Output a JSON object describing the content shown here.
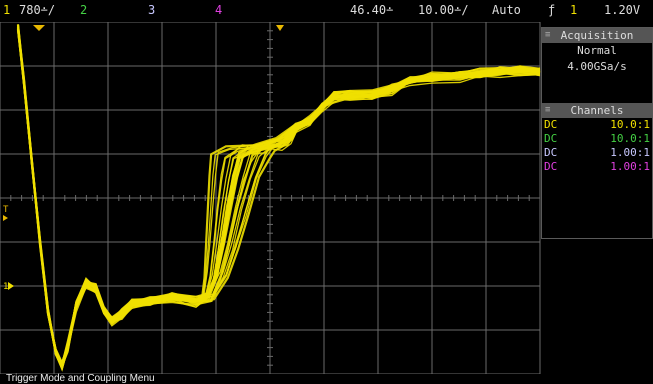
{
  "top_bar": {
    "ch1_label": "1",
    "ch1_scale": "780∸/",
    "ch2_label": "2",
    "ch3_label": "3",
    "ch4_label": "4",
    "time_delay": "46.40∸",
    "time_scale": "10.00∸/",
    "trigger_mode": "Auto",
    "trigger_icon": "ƒ",
    "trigger_source": "1",
    "trigger_level": "1.20V"
  },
  "acquisition": {
    "title": "Acquisition",
    "mode": "Normal",
    "sample_rate": "4.00GSa/s"
  },
  "channels": {
    "title": "Channels",
    "rows": [
      {
        "coupling": "DC",
        "probe": "10.0:1",
        "color": "#f0e000"
      },
      {
        "coupling": "DC",
        "probe": "10.0:1",
        "color": "#44d044"
      },
      {
        "coupling": "DC",
        "probe": "1.00:1",
        "color": "#c8c8ff"
      },
      {
        "coupling": "DC",
        "probe": "1.00:1",
        "color": "#e040e0"
      }
    ]
  },
  "markers": {
    "trigger_level_marker": "T",
    "ch1_ground_marker": "1"
  },
  "status_bar": {
    "text": "Trigger Mode and Coupling Menu"
  },
  "colors": {
    "ch1": "#f0e000",
    "ch2": "#44d044",
    "ch3": "#c8c8ff",
    "ch4": "#e040e0",
    "grid": "#6a6a6a",
    "trigger_marker": "#e8b800"
  }
}
